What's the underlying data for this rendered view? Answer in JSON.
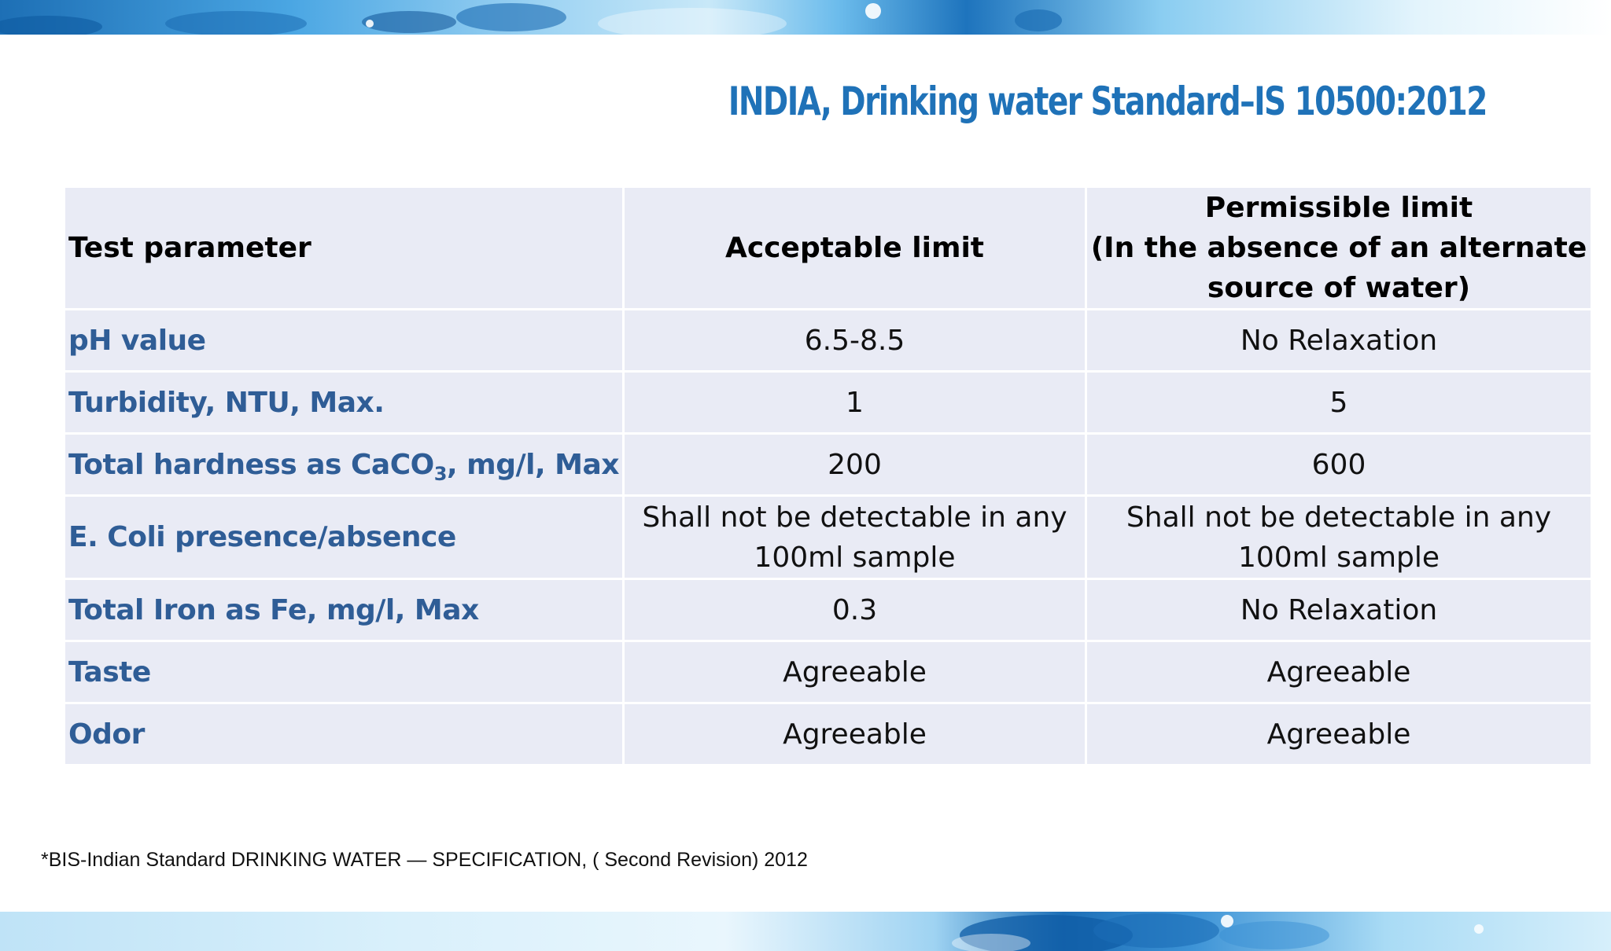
{
  "slide": {
    "title": "INDIA, Drinking water Standard–IS 10500:2012",
    "footnote": "*BIS-Indian Standard DRINKING WATER — SPECIFICATION, ( Second Revision) 2012"
  },
  "table": {
    "headers": {
      "parameter": "Test parameter",
      "acceptable": "Acceptable limit",
      "permissible_line1": "Permissible limit",
      "permissible_line2": "(In the absence of an alternate source of water)"
    },
    "rows": [
      {
        "parameter": "pH value",
        "acceptable": "6.5-8.5",
        "permissible": "No Relaxation"
      },
      {
        "parameter": "Turbidity, NTU, Max.",
        "acceptable": "1",
        "permissible": "5"
      },
      {
        "parameter_prefix": "Total hardness as CaCO",
        "parameter_sub": "3",
        "parameter_suffix": ", mg/l, Max",
        "acceptable": "200",
        "permissible": "600"
      },
      {
        "parameter": "E. Coli presence/absence",
        "acceptable": "Shall not be detectable in any 100ml sample",
        "permissible": "Shall not be detectable in any 100ml sample"
      },
      {
        "parameter": "Total Iron as Fe, mg/l, Max",
        "acceptable": "0.3",
        "permissible": "No Relaxation"
      },
      {
        "parameter": "Taste",
        "acceptable": "Agreeable",
        "permissible": "Agreeable"
      },
      {
        "parameter": "Odor",
        "acceptable": "Agreeable",
        "permissible": "Agreeable"
      }
    ]
  },
  "decor": {
    "band_icon_top": "water-droplets-banner-icon",
    "band_icon_bottom": "water-splash-banner-icon"
  }
}
